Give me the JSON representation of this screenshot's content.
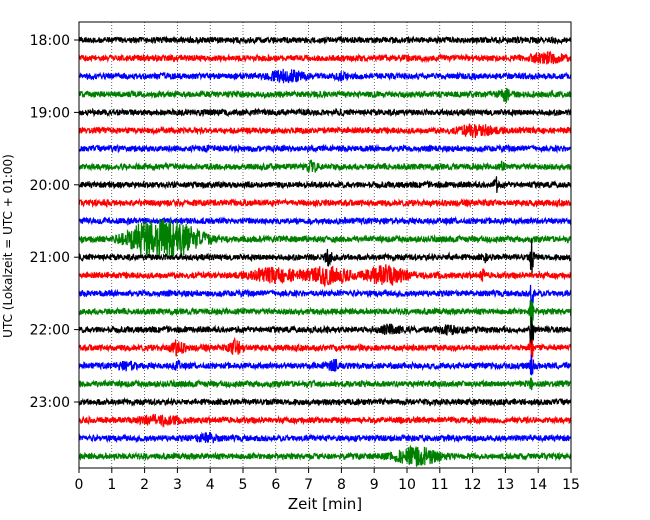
{
  "chart_data": {
    "type": "line",
    "title": "",
    "xlabel": "Zeit  [min]",
    "ylabel": "UTC (Lokalzeit = UTC + 01:00)",
    "xlim": [
      0,
      15
    ],
    "xticks": [
      "0",
      "1",
      "2",
      "3",
      "4",
      "5",
      "6",
      "7",
      "8",
      "9",
      "10",
      "11",
      "12",
      "13",
      "14",
      "15"
    ],
    "yticks": [
      "18:00",
      "19:00",
      "20:00",
      "21:00",
      "22:00",
      "23:00"
    ],
    "grid": "vertical dotted",
    "trace_colors": [
      "#000000",
      "#ff0000",
      "#0000ff",
      "#008000"
    ],
    "traces": [
      {
        "start": "18:00",
        "events": []
      },
      {
        "start": "18:15",
        "events": [
          {
            "t": 14.3,
            "amp": 0.5,
            "width": 0.5
          }
        ]
      },
      {
        "start": "18:30",
        "events": [
          {
            "t": 6.3,
            "amp": 0.7,
            "width": 0.5
          },
          {
            "t": 8.0,
            "amp": 0.4,
            "width": 0.15
          }
        ]
      },
      {
        "start": "18:45",
        "events": [
          {
            "t": 13.0,
            "amp": 1.2,
            "width": 0.1
          }
        ]
      },
      {
        "start": "19:00",
        "events": []
      },
      {
        "start": "19:15",
        "events": [
          {
            "t": 12.1,
            "amp": 0.7,
            "width": 0.5
          }
        ]
      },
      {
        "start": "19:30",
        "events": []
      },
      {
        "start": "19:45",
        "events": [
          {
            "t": 7.1,
            "amp": 0.6,
            "width": 0.2
          },
          {
            "t": 12.9,
            "amp": 0.5,
            "width": 0.05
          }
        ]
      },
      {
        "start": "20:00",
        "events": [
          {
            "t": 12.7,
            "amp": 1.4,
            "width": 0.05
          }
        ]
      },
      {
        "start": "20:15",
        "events": [
          {
            "t": 0.8,
            "amp": 0.6,
            "width": 0.05
          }
        ]
      },
      {
        "start": "20:30",
        "events": []
      },
      {
        "start": "20:45",
        "events": [
          {
            "t": 2.0,
            "amp": 1.6,
            "width": 0.6
          },
          {
            "t": 2.9,
            "amp": 2.2,
            "width": 0.8
          }
        ]
      },
      {
        "start": "21:00",
        "events": [
          {
            "t": 7.6,
            "amp": 0.9,
            "width": 0.1
          },
          {
            "t": 11.3,
            "amp": 0.5,
            "width": 0.05
          },
          {
            "t": 12.4,
            "amp": 0.5,
            "width": 0.05
          },
          {
            "t": 13.8,
            "amp": 2.5,
            "width": 0.05
          }
        ]
      },
      {
        "start": "21:15",
        "events": [
          {
            "t": 6.0,
            "amp": 0.8,
            "width": 0.7
          },
          {
            "t": 7.6,
            "amp": 1.1,
            "width": 0.6
          },
          {
            "t": 9.4,
            "amp": 1.2,
            "width": 0.6
          },
          {
            "t": 12.3,
            "amp": 0.9,
            "width": 0.05
          }
        ]
      },
      {
        "start": "21:30",
        "events": [
          {
            "t": 13.8,
            "amp": 3.0,
            "width": 0.05
          }
        ]
      },
      {
        "start": "21:45",
        "events": [
          {
            "t": 13.8,
            "amp": 3.0,
            "width": 0.05
          }
        ]
      },
      {
        "start": "22:00",
        "events": [
          {
            "t": 9.5,
            "amp": 0.5,
            "width": 0.3
          },
          {
            "t": 11.3,
            "amp": 0.4,
            "width": 0.3
          },
          {
            "t": 13.8,
            "amp": 3.0,
            "width": 0.05
          }
        ]
      },
      {
        "start": "22:15",
        "events": [
          {
            "t": 3.0,
            "amp": 0.9,
            "width": 0.2
          },
          {
            "t": 4.8,
            "amp": 0.9,
            "width": 0.2
          },
          {
            "t": 13.8,
            "amp": 2.5,
            "width": 0.05
          }
        ]
      },
      {
        "start": "22:30",
        "events": [
          {
            "t": 1.5,
            "amp": 0.4,
            "width": 0.3
          },
          {
            "t": 3.0,
            "amp": 0.5,
            "width": 0.1
          },
          {
            "t": 7.8,
            "amp": 0.6,
            "width": 0.2
          },
          {
            "t": 13.8,
            "amp": 2.0,
            "width": 0.05
          }
        ]
      },
      {
        "start": "22:45",
        "events": [
          {
            "t": 13.8,
            "amp": 0.8,
            "width": 0.05
          }
        ]
      },
      {
        "start": "23:00",
        "events": []
      },
      {
        "start": "23:15",
        "events": [
          {
            "t": 2.4,
            "amp": 0.5,
            "width": 0.6
          }
        ]
      },
      {
        "start": "23:30",
        "events": [
          {
            "t": 3.9,
            "amp": 0.5,
            "width": 0.3
          }
        ]
      },
      {
        "start": "23:45",
        "events": [
          {
            "t": 10.3,
            "amp": 1.1,
            "width": 0.6
          }
        ]
      }
    ]
  }
}
